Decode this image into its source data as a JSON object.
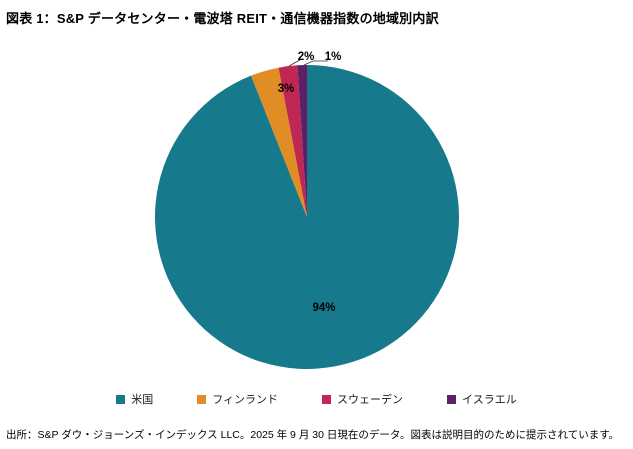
{
  "header": {
    "title": "図表 1：S&P データセンター・電波塔 REIT・通信機器指数の地域別内訳"
  },
  "chart_data": {
    "type": "pie",
    "title": "図表 1：S&P データセンター・電波塔 REIT・通信機器指数の地域別内訳",
    "labels": [
      "米国",
      "フィンランド",
      "スウェーデン",
      "イスラエル"
    ],
    "values": [
      94,
      3,
      2,
      1
    ],
    "value_labels": [
      "94%",
      "3%",
      "2%",
      "1%"
    ],
    "colors": [
      "#16798C",
      "#E18D26",
      "#BE2853",
      "#5C2166"
    ],
    "start_angle_deg": -90,
    "direction": "clockwise",
    "legend_position": "bottom"
  },
  "footer": {
    "source": "出所：S&P ダウ・ジョーンズ・インデックス LLC。2025 年 9 月 30 日現在のデータ。図表は説明目的のために提示されています。"
  }
}
